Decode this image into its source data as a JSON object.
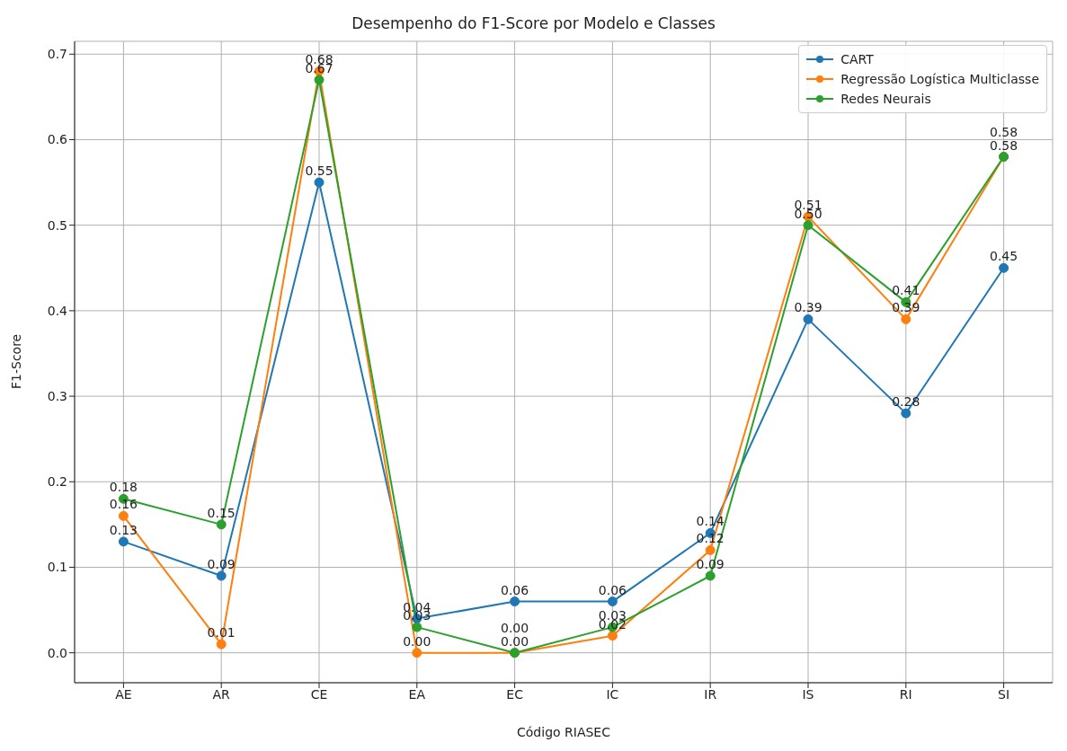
{
  "chart_data": {
    "type": "line",
    "title": "Desempenho do F1-Score por Modelo e Classes",
    "xlabel": "Código RIASEC",
    "ylabel": "F1-Score",
    "categories": [
      "AE",
      "AR",
      "CE",
      "EA",
      "EC",
      "IC",
      "IR",
      "IS",
      "RI",
      "SI"
    ],
    "series": [
      {
        "name": "CART",
        "color": "#1f77b4",
        "values": [
          0.13,
          0.09,
          0.55,
          0.04,
          0.06,
          0.06,
          0.14,
          0.39,
          0.28,
          0.45
        ],
        "value_labels": [
          "0.13",
          "0.09",
          "0.55",
          "0.04",
          "0.06",
          "0.06",
          "0.14",
          "0.39",
          "0.28",
          "0.45"
        ]
      },
      {
        "name": "Regressão Logística Multiclasse",
        "color": "#ff7f0e",
        "values": [
          0.16,
          0.01,
          0.68,
          0.0,
          0.0,
          0.02,
          0.12,
          0.51,
          0.39,
          0.58
        ],
        "value_labels": [
          "0.16",
          "0.01",
          "0.68",
          "0.00",
          "0.00",
          "0.02",
          "0.12",
          "0.51",
          "0.39",
          "0.58"
        ]
      },
      {
        "name": "Redes Neurais",
        "color": "#2ca02c",
        "values": [
          0.18,
          0.15,
          0.67,
          0.03,
          0.0,
          0.03,
          0.09,
          0.5,
          0.41,
          0.58
        ],
        "value_labels": [
          "0.18",
          "0.15",
          "0.67",
          "0.03",
          "0.00",
          "0.03",
          "0.09",
          "0.50",
          "0.41",
          "0.58"
        ]
      }
    ],
    "ylim": [
      -0.035,
      0.715
    ],
    "yticks": [
      {
        "value": 0,
        "label": "0.0"
      },
      {
        "value": 0.1,
        "label": "0.1"
      },
      {
        "value": 0.2,
        "label": "0.2"
      },
      {
        "value": 0.3,
        "label": "0.3"
      },
      {
        "value": 0.4,
        "label": "0.4"
      },
      {
        "value": 0.5,
        "label": "0.5"
      },
      {
        "value": 0.6,
        "label": "0.6"
      },
      {
        "value": 0.7,
        "label": "0.7"
      }
    ],
    "grid": true,
    "legend": "top right",
    "marker": "circle",
    "line_style": "solid"
  }
}
